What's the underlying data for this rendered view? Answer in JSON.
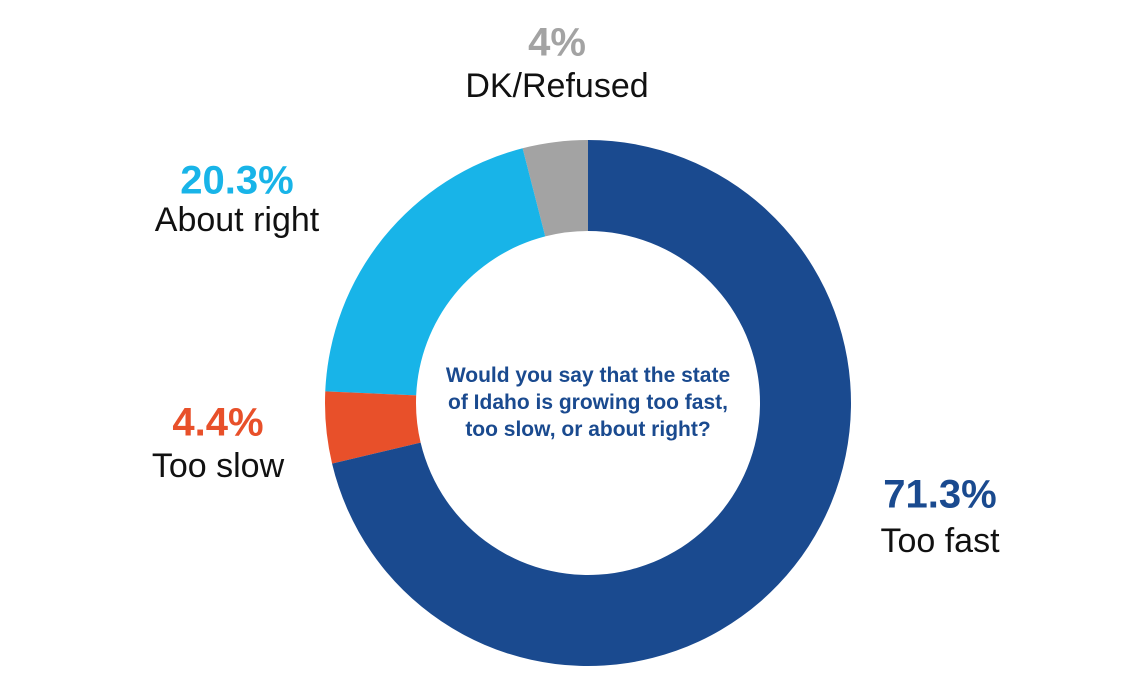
{
  "chart_data": {
    "type": "donut",
    "title": "Would you say that the state of Idaho is growing too fast, too slow, or about right?",
    "categories": [
      "Too fast",
      "Too slow",
      "About right",
      "DK/Refused"
    ],
    "values": [
      71.3,
      4.4,
      20.3,
      4
    ],
    "value_labels": [
      "71.3%",
      "4.4%",
      "20.3%",
      "4%"
    ],
    "colors": [
      "#1a4a8f",
      "#e8502a",
      "#18b4e8",
      "#a3a3a3"
    ]
  }
}
